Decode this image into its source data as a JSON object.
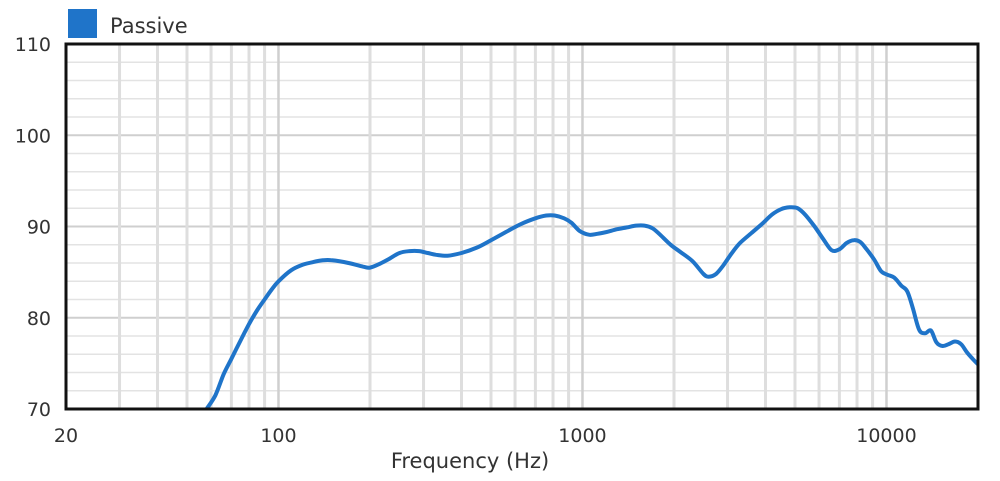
{
  "chart_data": {
    "type": "line",
    "title": "",
    "xlabel": "Frequency (Hz)",
    "ylabel": "",
    "x_scale": "log",
    "xlim": [
      20,
      20000
    ],
    "ylim": [
      70,
      110
    ],
    "x_ticks": [
      20,
      100,
      1000,
      10000
    ],
    "x_tick_labels": [
      "20",
      "100",
      "1000",
      "10000"
    ],
    "y_ticks": [
      70,
      80,
      90,
      100,
      110
    ],
    "y_tick_labels": [
      "70",
      "80",
      "90",
      "100",
      "110"
    ],
    "grid": true,
    "legend_position": "top-left",
    "series": [
      {
        "name": "Passive",
        "color": "#1f74c9",
        "x": [
          58,
          62,
          66,
          70,
          75,
          80,
          85,
          90,
          95,
          100,
          110,
          120,
          130,
          140,
          150,
          170,
          190,
          200,
          215,
          230,
          250,
          270,
          290,
          310,
          330,
          360,
          400,
          450,
          500,
          560,
          630,
          700,
          760,
          810,
          870,
          920,
          980,
          1050,
          1120,
          1200,
          1300,
          1400,
          1500,
          1600,
          1700,
          1800,
          1950,
          2100,
          2300,
          2500,
          2600,
          2750,
          2900,
          3100,
          3300,
          3600,
          3900,
          4200,
          4500,
          4800,
          5100,
          5400,
          5800,
          6200,
          6600,
          7000,
          7400,
          7800,
          8200,
          8600,
          9100,
          9600,
          10100,
          10600,
          11200,
          11700,
          12200,
          12800,
          13400,
          14000,
          14600,
          15300,
          16000,
          16800,
          17600,
          18400,
          19200,
          20000
        ],
        "y": [
          70,
          71.5,
          73.8,
          75.5,
          77.5,
          79.3,
          80.8,
          82,
          83.1,
          84,
          85.2,
          85.8,
          86.1,
          86.3,
          86.3,
          86,
          85.6,
          85.5,
          85.9,
          86.4,
          87.1,
          87.3,
          87.3,
          87.1,
          86.9,
          86.8,
          87.1,
          87.7,
          88.5,
          89.4,
          90.3,
          90.9,
          91.2,
          91.2,
          90.9,
          90.4,
          89.5,
          89.1,
          89.2,
          89.4,
          89.7,
          89.9,
          90.1,
          90.1,
          89.8,
          89.1,
          88,
          87.2,
          86.2,
          84.8,
          84.5,
          84.8,
          85.7,
          87.1,
          88.2,
          89.3,
          90.3,
          91.3,
          91.9,
          92.1,
          92,
          91.3,
          90,
          88.6,
          87.4,
          87.5,
          88.2,
          88.5,
          88.3,
          87.5,
          86.4,
          85.1,
          84.7,
          84.4,
          83.5,
          82.9,
          81.1,
          78.7,
          78.3,
          78.6,
          77.3,
          76.9,
          77.1,
          77.4,
          77.1,
          76.2,
          75.5,
          74.9
        ]
      }
    ]
  }
}
